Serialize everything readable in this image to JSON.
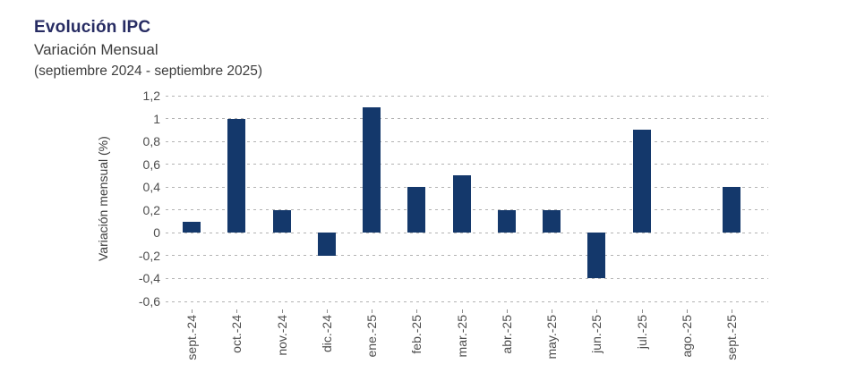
{
  "chart_data": {
    "type": "bar",
    "title": "Evolución IPC",
    "subtitle": "Variación Mensual",
    "period": "(septiembre 2024 - septiembre 2025)",
    "ylabel": "Variación mensual (%)",
    "xlabel": "",
    "categories": [
      "sept.-24",
      "oct.-24",
      "nov.-24",
      "dic.-24",
      "ene.-25",
      "feb.-25",
      "mar.-25",
      "abr.-25",
      "may.-25",
      "jun.-25",
      "jul.-25",
      "ago.-25",
      "sept.-25"
    ],
    "values": [
      0.1,
      1,
      0.2,
      -0.2,
      1.1,
      0.4,
      0.5,
      0.2,
      0.2,
      -0.4,
      0.9,
      0,
      0.4
    ],
    "ylim": [
      -0.6,
      1.2
    ],
    "yticks": [
      {
        "value": 1.2,
        "label": "1,2"
      },
      {
        "value": 1,
        "label": "1"
      },
      {
        "value": 0.8,
        "label": "0,8"
      },
      {
        "value": 0.6,
        "label": "0,6"
      },
      {
        "value": 0.4,
        "label": "0,4"
      },
      {
        "value": 0.2,
        "label": "0,2"
      },
      {
        "value": 0,
        "label": "0"
      },
      {
        "value": -0.2,
        "label": "-0,2"
      },
      {
        "value": -0.4,
        "label": "-0,4"
      },
      {
        "value": -0.6,
        "label": "-0,6"
      }
    ],
    "grid": "horizontal-dashed",
    "legend": "none"
  },
  "colors": {
    "title": "#272c63",
    "text": "#3d3d3d",
    "axis_text": "#4d4d4d",
    "gridline": "#b3b3b3",
    "bar": "#14386b",
    "background": "#ffffff"
  }
}
